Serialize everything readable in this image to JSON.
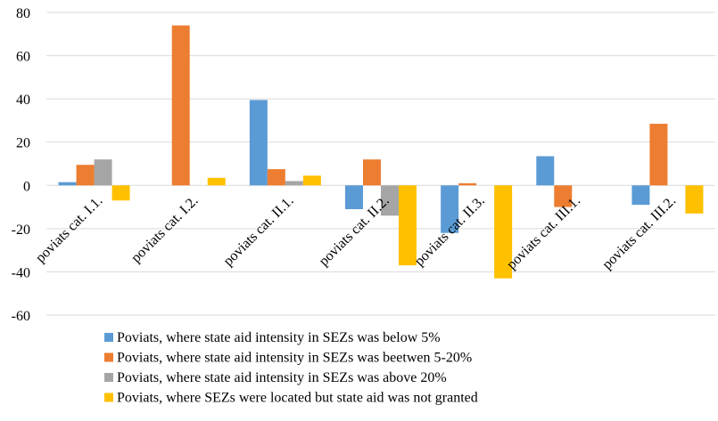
{
  "chart_data": {
    "type": "bar",
    "categories": [
      "poviats cat. I.1.",
      "poviats cat. I.2.",
      "poviats cat. II.1.",
      "poviats cat. II.2.",
      "poviats cat. II.3.",
      "poviats cat. III.1.",
      "poviats cat. III.2."
    ],
    "series": [
      {
        "name": "Poviats, where state aid intensity in SEZs was below 5%",
        "color": "#5B9BD5",
        "values": [
          1.5,
          null,
          39.5,
          -11,
          -22,
          13.5,
          -9
        ]
      },
      {
        "name": "Poviats, where state aid intensity in SEZs was beetwen 5-20%",
        "color": "#ED7D31",
        "values": [
          9.5,
          74,
          7.5,
          12,
          1,
          -10,
          28.5
        ]
      },
      {
        "name": "Poviats, where state aid intensity in SEZs was above 20%",
        "color": "#A5A5A5",
        "values": [
          12,
          null,
          2,
          -14,
          null,
          null,
          null
        ]
      },
      {
        "name": "Poviats, where SEZs were located but state aid was not granted",
        "color": "#FFC000",
        "values": [
          -7,
          3.5,
          4.5,
          -37,
          -43,
          null,
          -13
        ]
      }
    ],
    "y_ticks": [
      80,
      60,
      40,
      20,
      0,
      -20,
      -40,
      -60
    ],
    "ylim": [
      -60,
      80
    ],
    "grid": true,
    "legend_position": "bottom",
    "title": "",
    "xlabel": "",
    "ylabel": ""
  }
}
